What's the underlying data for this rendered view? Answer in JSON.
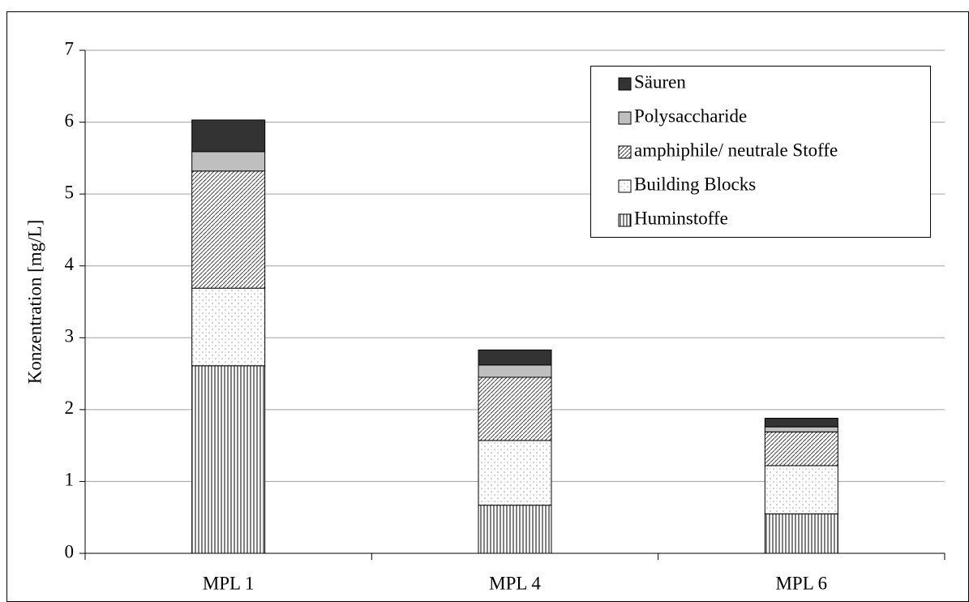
{
  "chart_data": {
    "type": "stacked_bar",
    "y_label": "Konzentration [mg/L]",
    "categories": [
      "MPL 1",
      "MPL 4",
      "MPL 6"
    ],
    "series": [
      {
        "name": "Huminstoffe",
        "color": "#000000",
        "values": [
          2.61,
          0.67,
          0.55
        ]
      },
      {
        "name": "Building Blocks",
        "color": "#9a9a9a",
        "values": [
          1.08,
          0.9,
          0.67
        ]
      },
      {
        "name": "amphiphile/ neutrale Stoffe",
        "color": "#444444",
        "values": [
          1.63,
          0.88,
          0.47
        ]
      },
      {
        "name": "Polysaccharide",
        "color": "#bfbfbf",
        "values": [
          0.27,
          0.17,
          0.07
        ]
      },
      {
        "name": "Säuren",
        "color": "#333333",
        "values": [
          0.44,
          0.21,
          0.12
        ]
      }
    ],
    "ylim": [
      0,
      7
    ],
    "yticks": [
      0,
      1,
      2,
      3,
      4,
      5,
      6,
      7
    ],
    "grid": true,
    "legend": "top-right"
  }
}
